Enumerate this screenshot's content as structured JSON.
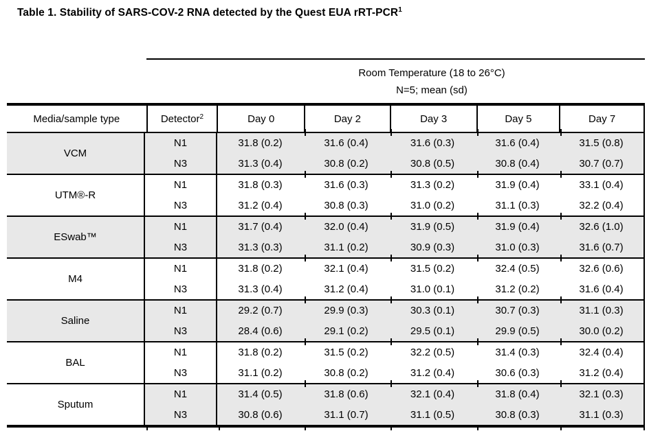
{
  "title": {
    "text": "Table 1. Stability of SARS-COV-2 RNA detected by the Quest EUA rRT-PCR",
    "superscript": "1"
  },
  "table": {
    "span_header": {
      "line1": "Room Temperature (18 to 26°C)",
      "line2": "N=5; mean (sd)"
    },
    "column_headers": {
      "media": "Media/sample type",
      "detector": "Detector",
      "detector_superscript": "2",
      "days": [
        "Day 0",
        "Day 2",
        "Day 3",
        "Day 5",
        "Day 7"
      ]
    },
    "colors": {
      "row_shading": "#e8e8e8",
      "border": "#000000",
      "text": "#000000"
    },
    "groups": [
      {
        "media": "VCM",
        "shaded_media": true,
        "shaded_data": true,
        "rows": [
          {
            "detector": "N1",
            "values": [
              "31.8 (0.2)",
              "31.6 (0.4)",
              "31.6 (0.3)",
              "31.6 (0.4)",
              "31.5 (0.8)"
            ]
          },
          {
            "detector": "N3",
            "values": [
              "31.3 (0.4)",
              "30.8 (0.2)",
              "30.8 (0.5)",
              "30.8 (0.4)",
              "30.7 (0.7)"
            ]
          }
        ]
      },
      {
        "media": "UTM®-R",
        "shaded_media": false,
        "shaded_data": false,
        "rows": [
          {
            "detector": "N1",
            "values": [
              "31.8 (0.3)",
              "31.6 (0.3)",
              "31.3 (0.2)",
              "31.9 (0.4)",
              "33.1 (0.4)"
            ]
          },
          {
            "detector": "N3",
            "values": [
              "31.2 (0.4)",
              "30.8 (0.3)",
              "31.0 (0.2)",
              "31.1 (0.3)",
              "32.2 (0.4)"
            ]
          }
        ]
      },
      {
        "media": "ESwab™",
        "shaded_media": true,
        "shaded_data": true,
        "rows": [
          {
            "detector": "N1",
            "values": [
              "31.7 (0.4)",
              "32.0 (0.4)",
              "31.9 (0.5)",
              "31.9 (0.4)",
              "32.6 (1.0)"
            ]
          },
          {
            "detector": "N3",
            "values": [
              "31.3 (0.3)",
              "31.1 (0.2)",
              "30.9 (0.3)",
              "31.0 (0.3)",
              "31.6 (0.7)"
            ]
          }
        ]
      },
      {
        "media": "M4",
        "shaded_media": false,
        "shaded_data": false,
        "rows": [
          {
            "detector": "N1",
            "values": [
              "31.8 (0.2)",
              "32.1 (0.4)",
              "31.5 (0.2)",
              "32.4 (0.5)",
              "32.6 (0.6)"
            ]
          },
          {
            "detector": "N3",
            "values": [
              "31.3 (0.4)",
              "31.2 (0.4)",
              "31.0 (0.1)",
              "31.2 (0.2)",
              "31.6 (0.4)"
            ]
          }
        ]
      },
      {
        "media": "Saline",
        "shaded_media": true,
        "shaded_data": true,
        "rows": [
          {
            "detector": "N1",
            "values": [
              "29.2 (0.7)",
              "29.9 (0.3)",
              "30.3 (0.1)",
              "30.7 (0.3)",
              "31.1 (0.3)"
            ]
          },
          {
            "detector": "N3",
            "values": [
              "28.4 (0.6)",
              "29.1 (0.2)",
              "29.5 (0.1)",
              "29.9 (0.5)",
              "30.0 (0.2)"
            ]
          }
        ]
      },
      {
        "media": "BAL",
        "shaded_media": false,
        "shaded_data": false,
        "rows": [
          {
            "detector": "N1",
            "values": [
              "31.8 (0.2)",
              "31.5 (0.2)",
              "32.2 (0.5)",
              "31.4 (0.3)",
              "32.4 (0.4)"
            ]
          },
          {
            "detector": "N3",
            "values": [
              "31.1 (0.2)",
              "30.8 (0.2)",
              "31.2 (0.4)",
              "30.6 (0.3)",
              "31.2 (0.4)"
            ]
          }
        ]
      },
      {
        "media": "Sputum",
        "shaded_media": false,
        "shaded_data": true,
        "rows": [
          {
            "detector": "N1",
            "values": [
              "31.4 (0.5)",
              "31.8 (0.6)",
              "32.1 (0.4)",
              "31.8 (0.4)",
              "32.1 (0.3)"
            ]
          },
          {
            "detector": "N3",
            "values": [
              "30.8 (0.6)",
              "31.1 (0.7)",
              "31.1 (0.5)",
              "30.8 (0.3)",
              "31.1 (0.3)"
            ]
          }
        ]
      }
    ]
  }
}
